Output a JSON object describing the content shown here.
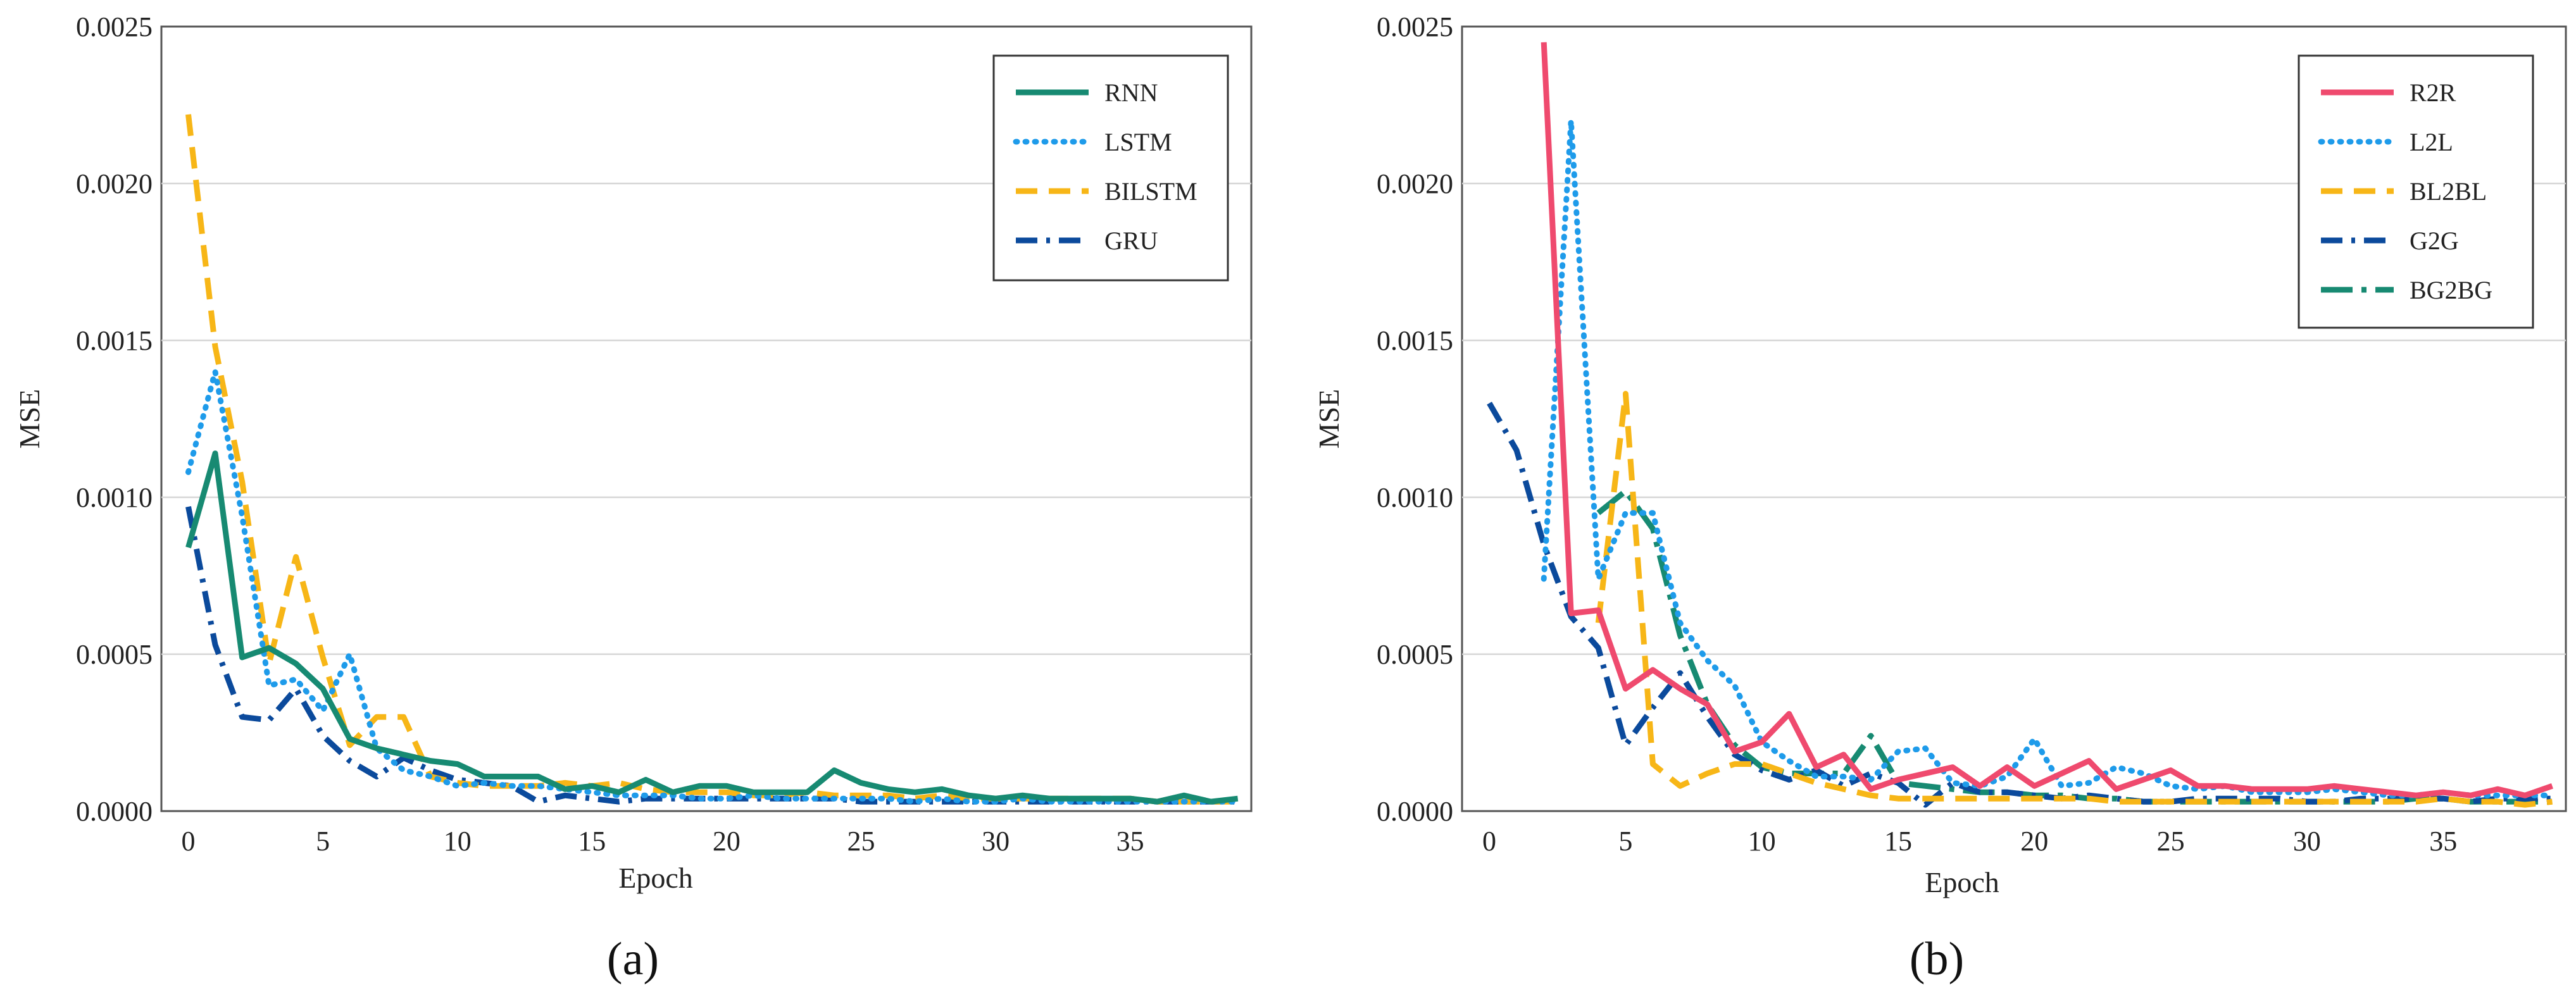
{
  "chart_data": [
    {
      "type": "line",
      "panel_label": "(a)",
      "xlabel": "Epoch",
      "ylabel": "MSE",
      "xlim": [
        -1,
        39.5
      ],
      "ylim": [
        0,
        0.0025
      ],
      "xticks": [
        0,
        5,
        10,
        15,
        20,
        25,
        30,
        35
      ],
      "yticks": [
        0.0,
        0.0005,
        0.001,
        0.0015,
        0.002,
        0.0025
      ],
      "ytick_labels": [
        "0.0000",
        "0.0005",
        "0.0010",
        "0.0015",
        "0.0020",
        "0.0025"
      ],
      "grid": "horizontal",
      "legend_position": "top-right",
      "series": [
        {
          "name": "RNN",
          "color": "#178a72",
          "dash": "solid",
          "values": [
            0.00084,
            0.00114,
            0.00049,
            0.00052,
            0.00047,
            0.00039,
            0.00023,
            0.0002,
            0.00018,
            0.00016,
            0.00015,
            0.00011,
            0.00011,
            0.00011,
            7e-05,
            8e-05,
            6e-05,
            0.0001,
            6e-05,
            8e-05,
            8e-05,
            6e-05,
            6e-05,
            6e-05,
            0.00013,
            9e-05,
            7e-05,
            6e-05,
            7e-05,
            5e-05,
            4e-05,
            5e-05,
            4e-05,
            4e-05,
            4e-05,
            4e-05,
            3e-05,
            5e-05,
            3e-05,
            4e-05
          ]
        },
        {
          "name": "LSTM",
          "color": "#1e9bea",
          "dash": "dot",
          "values": [
            0.00108,
            0.0014,
            0.00094,
            0.0004,
            0.00042,
            0.00032,
            0.0005,
            0.0002,
            0.00013,
            0.00011,
            8e-05,
            9e-05,
            8e-05,
            8e-05,
            7e-05,
            6e-05,
            5e-05,
            5e-05,
            5e-05,
            4e-05,
            4e-05,
            5e-05,
            4e-05,
            4e-05,
            4e-05,
            4e-05,
            4e-05,
            3e-05,
            4e-05,
            3e-05,
            3e-05,
            4e-05,
            3e-05,
            3e-05,
            3e-05,
            3e-05,
            3e-05,
            3e-05,
            3e-05,
            3e-05
          ]
        },
        {
          "name": "BILSTM",
          "color": "#f7b617",
          "dash": "dash",
          "values": [
            0.00222,
            0.00148,
            0.00105,
            0.00047,
            0.00081,
            0.00049,
            0.00021,
            0.0003,
            0.0003,
            0.00011,
            9e-05,
            8e-05,
            8e-05,
            8e-05,
            9e-05,
            8e-05,
            9e-05,
            7e-05,
            6e-05,
            6e-05,
            6e-05,
            5e-05,
            5e-05,
            6e-05,
            5e-05,
            5e-05,
            5e-05,
            4e-05,
            5e-05,
            4e-05,
            4e-05,
            4e-05,
            4e-05,
            4e-05,
            4e-05,
            4e-05,
            3e-05,
            3e-05,
            3e-05,
            3e-05
          ]
        },
        {
          "name": "GRU",
          "color": "#0b4a9c",
          "dash": "dashdot",
          "values": [
            0.00097,
            0.00053,
            0.0003,
            0.00029,
            0.00039,
            0.00024,
            0.00016,
            0.00011,
            0.00017,
            0.00013,
            0.0001,
            9e-05,
            8e-05,
            3e-05,
            5e-05,
            4e-05,
            3e-05,
            4e-05,
            4e-05,
            4e-05,
            4e-05,
            4e-05,
            4e-05,
            4e-05,
            4e-05,
            3e-05,
            3e-05,
            3e-05,
            3e-05,
            3e-05,
            3e-05,
            3e-05,
            3e-05,
            3e-05,
            3e-05,
            3e-05,
            3e-05,
            3e-05,
            3e-05,
            3e-05
          ]
        }
      ]
    },
    {
      "type": "line",
      "panel_label": "(b)",
      "xlabel": "Epoch",
      "ylabel": "MSE",
      "xlim": [
        -1,
        39.5
      ],
      "ylim": [
        0,
        0.0025
      ],
      "xticks": [
        0,
        5,
        10,
        15,
        20,
        25,
        30,
        35
      ],
      "yticks": [
        0.0,
        0.0005,
        0.001,
        0.0015,
        0.002,
        0.0025
      ],
      "ytick_labels": [
        "0.0000",
        "0.0005",
        "0.0010",
        "0.0015",
        "0.0020",
        "0.0025"
      ],
      "grid": "horizontal",
      "legend_position": "top-right",
      "series": [
        {
          "name": "R2R",
          "color": "#ef4a6e",
          "dash": "solid",
          "values": [
            null,
            null,
            0.00245,
            0.00063,
            0.00064,
            0.00039,
            0.00045,
            0.00039,
            0.00034,
            0.00019,
            0.00022,
            0.00031,
            0.00014,
            0.00018,
            7e-05,
            0.0001,
            0.00012,
            0.00014,
            8e-05,
            0.00014,
            8e-05,
            0.00012,
            0.00016,
            7e-05,
            0.0001,
            0.00013,
            8e-05,
            8e-05,
            7e-05,
            7e-05,
            7e-05,
            8e-05,
            7e-05,
            6e-05,
            5e-05,
            6e-05,
            5e-05,
            7e-05,
            5e-05,
            8e-05
          ]
        },
        {
          "name": "L2L",
          "color": "#1e9bea",
          "dash": "dot",
          "values": [
            null,
            null,
            0.00074,
            0.0022,
            0.00074,
            0.00095,
            0.00095,
            0.0006,
            0.00048,
            0.0004,
            0.00022,
            0.00016,
            0.00011,
            0.00011,
            0.0001,
            0.00019,
            0.0002,
            9e-05,
            8e-05,
            0.00011,
            0.00023,
            8e-05,
            9e-05,
            0.00014,
            0.00012,
            8e-05,
            7e-05,
            8e-05,
            6e-05,
            6e-05,
            6e-05,
            7e-05,
            6e-05,
            5e-05,
            5e-05,
            6e-05,
            5e-05,
            5e-05,
            5e-05,
            5e-05
          ]
        },
        {
          "name": "BL2BL",
          "color": "#f7b617",
          "dash": "dash",
          "values": [
            null,
            null,
            null,
            null,
            0.0006,
            0.00133,
            0.00015,
            8e-05,
            0.00012,
            0.00015,
            0.00015,
            0.00012,
            9e-05,
            7e-05,
            5e-05,
            4e-05,
            4e-05,
            4e-05,
            4e-05,
            4e-05,
            4e-05,
            4e-05,
            4e-05,
            3e-05,
            3e-05,
            3e-05,
            3e-05,
            3e-05,
            3e-05,
            3e-05,
            3e-05,
            3e-05,
            3e-05,
            3e-05,
            3e-05,
            4e-05,
            3e-05,
            3e-05,
            2e-05,
            3e-05
          ]
        },
        {
          "name": "G2G",
          "color": "#0b4a9c",
          "dash": "dashdot",
          "values": [
            0.0013,
            0.00115,
            0.00085,
            0.00062,
            0.00052,
            0.00021,
            0.00033,
            0.00044,
            0.0003,
            0.00018,
            0.00013,
            0.0001,
            0.00013,
            8e-05,
            0.00012,
            9e-05,
            2e-05,
            9e-05,
            6e-05,
            6e-05,
            5e-05,
            4e-05,
            5e-05,
            4e-05,
            3e-05,
            3e-05,
            4e-05,
            4e-05,
            4e-05,
            4e-05,
            3e-05,
            3e-05,
            4e-05,
            4e-05,
            4e-05,
            4e-05,
            3e-05,
            4e-05,
            4e-05,
            4e-05
          ]
        },
        {
          "name": "BG2BG",
          "color": "#178a72",
          "dash": "longdashdot",
          "values": [
            null,
            null,
            null,
            null,
            0.00095,
            0.00102,
            0.0009,
            0.00056,
            0.00034,
            0.00021,
            0.00014,
            0.00012,
            0.00012,
            0.00012,
            0.00024,
            9e-05,
            8e-05,
            7e-05,
            6e-05,
            6e-05,
            5e-05,
            5e-05,
            4e-05,
            4e-05,
            3e-05,
            3e-05,
            3e-05,
            3e-05,
            3e-05,
            3e-05,
            3e-05,
            3e-05,
            3e-05,
            3e-05,
            4e-05,
            4e-05,
            3e-05,
            3e-05,
            3e-05,
            3e-05
          ]
        }
      ]
    }
  ]
}
